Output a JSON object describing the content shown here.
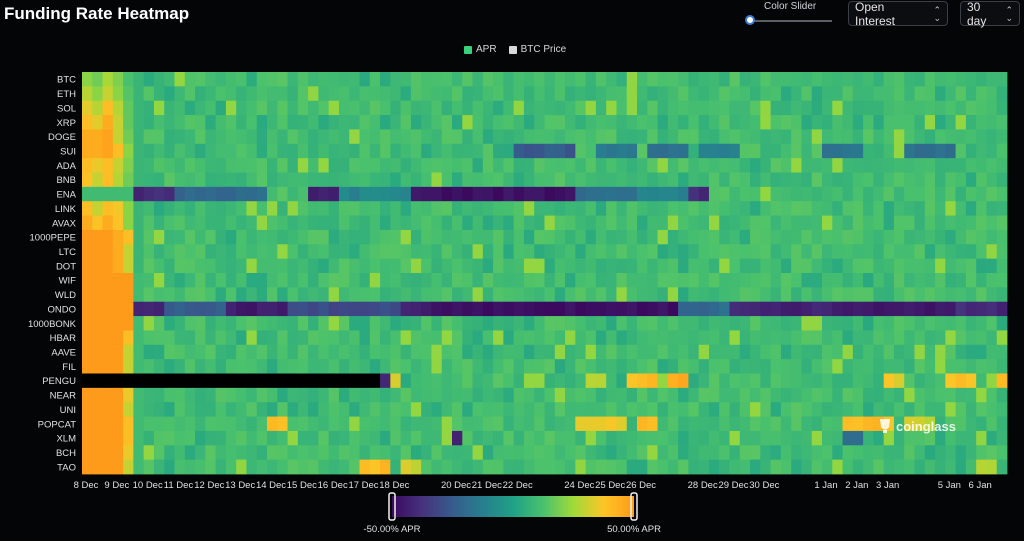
{
  "header": {
    "title": "Funding Rate Heatmap",
    "slider_label": "Color Slider",
    "metric_select": "Open Interest",
    "period_select": "30 day"
  },
  "legend": [
    {
      "label": "APR",
      "color": "#37d27a"
    },
    {
      "label": "BTC Price",
      "color": "#d9d9d9"
    }
  ],
  "watermark": "coinglass",
  "colors": {
    "background": "#040507",
    "missing": "#000000",
    "scale": [
      "#3b0a5e",
      "#46327e",
      "#365c8d",
      "#277f8e",
      "#1fa187",
      "#4ac16d",
      "#a0da39",
      "#fdc527",
      "#ff9b1a"
    ]
  },
  "chart_data": {
    "type": "heatmap",
    "value_unit": "APR %",
    "color_range": [
      -50,
      50
    ],
    "colorbar": {
      "min_label": "-50.00% APR",
      "max_label": "50.00% APR"
    },
    "rows": [
      "BTC",
      "ETH",
      "SOL",
      "XRP",
      "DOGE",
      "SUI",
      "ADA",
      "BNB",
      "ENA",
      "LINK",
      "AVAX",
      "1000PEPE",
      "LTC",
      "DOT",
      "WIF",
      "WLD",
      "ONDO",
      "1000BONK",
      "HBAR",
      "AAVE",
      "FIL",
      "PENGU",
      "NEAR",
      "UNI",
      "POPCAT",
      "XLM",
      "BCH",
      "TAO"
    ],
    "x_ticks": [
      "8 Dec",
      "9 Dec",
      "10 Dec",
      "11 Dec",
      "12 Dec",
      "13 Dec",
      "14 Dec",
      "15 Dec",
      "16 Dec",
      "17 Dec",
      "18 Dec",
      "20 Dec",
      "21 Dec",
      "22 Dec",
      "24 Dec",
      "25 Dec",
      "26 Dec",
      "28 Dec",
      "29 Dec",
      "30 Dec",
      "1 Jan",
      "2 Jan",
      "3 Jan",
      "5 Jan",
      "6 Jan"
    ],
    "x_tick_days": [
      0,
      1,
      2,
      3,
      4,
      5,
      6,
      7,
      8,
      9,
      10,
      12,
      13,
      14,
      16,
      17,
      18,
      20,
      21,
      22,
      24,
      25,
      26,
      28,
      29
    ],
    "days": 30,
    "columns": 90,
    "baseline_apr": 10.95,
    "early_apr": [
      [
        22,
        18,
        26,
        20,
        12,
        8
      ],
      [
        28,
        22,
        30,
        22,
        14,
        8
      ],
      [
        34,
        28,
        40,
        28,
        16,
        8
      ],
      [
        40,
        34,
        45,
        30,
        16,
        8
      ],
      [
        45,
        45,
        48,
        30,
        18,
        8
      ],
      [
        45,
        45,
        48,
        40,
        22,
        8
      ],
      [
        40,
        35,
        40,
        30,
        20,
        8
      ],
      [
        38,
        30,
        40,
        28,
        18,
        8
      ],
      [
        10,
        10,
        10,
        10,
        10,
        10
      ],
      [
        40,
        30,
        40,
        36,
        22,
        8
      ],
      [
        45,
        38,
        45,
        38,
        22,
        8
      ],
      [
        50,
        50,
        50,
        45,
        40,
        8
      ],
      [
        50,
        50,
        50,
        45,
        30,
        8
      ],
      [
        50,
        50,
        50,
        45,
        30,
        8
      ],
      [
        50,
        50,
        50,
        50,
        50,
        10
      ],
      [
        50,
        50,
        50,
        50,
        50,
        10
      ],
      [
        50,
        50,
        50,
        50,
        50,
        10
      ],
      [
        50,
        50,
        50,
        50,
        50,
        10
      ],
      [
        50,
        50,
        50,
        50,
        40,
        10
      ],
      [
        50,
        50,
        50,
        50,
        30,
        10
      ],
      [
        50,
        50,
        50,
        50,
        30,
        10
      ],
      [
        50,
        50,
        50,
        50,
        50,
        50
      ],
      [
        50,
        50,
        50,
        50,
        35,
        10
      ],
      [
        50,
        50,
        50,
        50,
        30,
        10
      ],
      [
        50,
        50,
        50,
        50,
        40,
        10
      ],
      [
        50,
        50,
        50,
        50,
        40,
        10
      ],
      [
        50,
        50,
        50,
        50,
        35,
        10
      ],
      [
        50,
        50,
        50,
        50,
        30,
        10
      ]
    ],
    "missing_ranges": [
      {
        "row": "PENGU",
        "from_col": 0,
        "to_col": 28
      }
    ],
    "row_events": [
      {
        "row": "ENA",
        "cols": [
          [
            5,
            8,
            -40
          ],
          [
            9,
            17,
            -20
          ],
          [
            22,
            24,
            -45
          ],
          [
            25,
            31,
            -10
          ],
          [
            32,
            33,
            -45
          ],
          [
            34,
            47,
            -48
          ],
          [
            48,
            53,
            -20
          ],
          [
            54,
            58,
            -10
          ],
          [
            59,
            60,
            -40
          ]
        ]
      },
      {
        "row": "ONDO",
        "cols": [
          [
            5,
            7,
            -42
          ],
          [
            8,
            13,
            -25
          ],
          [
            14,
            19,
            -45
          ],
          [
            20,
            30,
            -30
          ],
          [
            31,
            33,
            -44
          ],
          [
            34,
            57,
            -48
          ],
          [
            58,
            62,
            -20
          ],
          [
            63,
            72,
            -42
          ],
          [
            73,
            84,
            -46
          ],
          [
            85,
            89,
            -40
          ]
        ]
      },
      {
        "row": "SUI",
        "cols": [
          [
            42,
            47,
            -25
          ],
          [
            50,
            53,
            -15
          ],
          [
            55,
            58,
            -18
          ],
          [
            60,
            63,
            -10
          ],
          [
            72,
            75,
            -15
          ],
          [
            80,
            84,
            -18
          ]
        ]
      },
      {
        "row": "PENGU",
        "cols": [
          [
            29,
            29,
            -40
          ],
          [
            30,
            30,
            30
          ],
          [
            49,
            50,
            28
          ],
          [
            53,
            55,
            40
          ],
          [
            57,
            58,
            45
          ],
          [
            78,
            79,
            35
          ],
          [
            84,
            86,
            40
          ],
          [
            89,
            89,
            42
          ]
        ]
      },
      {
        "row": "POPCAT",
        "cols": [
          [
            18,
            19,
            40
          ],
          [
            48,
            52,
            35
          ],
          [
            54,
            55,
            42
          ],
          [
            74,
            78,
            40
          ],
          [
            80,
            82,
            30
          ]
        ]
      },
      {
        "row": "XLM",
        "cols": [
          [
            36,
            36,
            -45
          ],
          [
            74,
            75,
            -20
          ]
        ]
      },
      {
        "row": "TAO",
        "cols": [
          [
            27,
            29,
            40
          ],
          [
            31,
            32,
            30
          ],
          [
            87,
            88,
            30
          ]
        ]
      }
    ]
  }
}
